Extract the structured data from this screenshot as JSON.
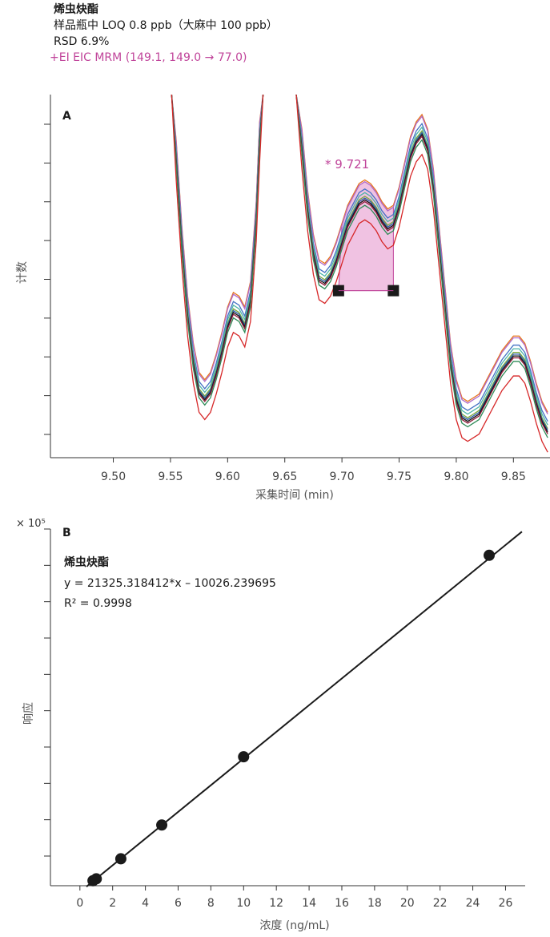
{
  "header": {
    "compound": "烯虫炔酯",
    "loq": "样品瓶中 LOQ 0.8 ppb（大麻中 100 ppb）",
    "rsd": "RSD 6.9%",
    "eic": "+EI EIC MRM (149.1, 149.0 → 77.0)"
  },
  "chart_data": [
    {
      "panel": "A",
      "type": "line",
      "xlabel": "采集时间 (min)",
      "ylabel": "计数",
      "xlim": [
        9.445,
        9.882
      ],
      "ylim": [
        0,
        10
      ],
      "xticks": [
        "9.50",
        "9.55",
        "9.60",
        "9.65",
        "9.70",
        "9.75",
        "9.80",
        "9.85"
      ],
      "y_tick_count": 9,
      "y_tick_labels_shown": false,
      "peak_label": "* 9.721",
      "integration": {
        "start": 9.697,
        "end": 9.745,
        "baseline": 4.6
      },
      "series_colors": [
        "#e8751a",
        "#b069c9",
        "#4472c4",
        "#4cb5a8",
        "#7aa83c",
        "#2a5aa8",
        "#111111",
        "#8e1c3a",
        "#2e8b57",
        "#d62728"
      ],
      "x": [
        9.551,
        9.555,
        9.56,
        9.565,
        9.57,
        9.575,
        9.58,
        9.585,
        9.59,
        9.595,
        9.6,
        9.605,
        9.61,
        9.615,
        9.62,
        9.625,
        9.628,
        9.631,
        9.66,
        9.665,
        9.67,
        9.675,
        9.68,
        9.685,
        9.69,
        9.695,
        9.7,
        9.705,
        9.71,
        9.715,
        9.72,
        9.725,
        9.73,
        9.735,
        9.74,
        9.745,
        9.75,
        9.755,
        9.76,
        9.765,
        9.77,
        9.775,
        9.78,
        9.785,
        9.79,
        9.795,
        9.8,
        9.805,
        9.81,
        9.815,
        9.82,
        9.825,
        9.83,
        9.835,
        9.84,
        9.845,
        9.85,
        9.855,
        9.86,
        9.865,
        9.87,
        9.875,
        9.88
      ],
      "reference_series": [
        10.0,
        8.2,
        5.8,
        3.9,
        2.6,
        1.8,
        1.6,
        1.8,
        2.3,
        2.9,
        3.6,
        4.0,
        3.9,
        3.6,
        4.3,
        6.5,
        8.7,
        10.0,
        10.0,
        8.5,
        6.8,
        5.6,
        4.9,
        4.8,
        5.0,
        5.4,
        5.9,
        6.4,
        6.7,
        7.0,
        7.1,
        7.0,
        6.8,
        6.5,
        6.3,
        6.4,
        6.9,
        7.6,
        8.3,
        8.7,
        8.9,
        8.5,
        7.4,
        5.8,
        4.2,
        2.6,
        1.6,
        1.1,
        1.0,
        1.1,
        1.2,
        1.5,
        1.8,
        2.1,
        2.4,
        2.6,
        2.8,
        2.8,
        2.6,
        2.1,
        1.5,
        1.0,
        0.7
      ],
      "series_level_offsets": [
        0.55,
        0.5,
        0.3,
        0.2,
        0.1,
        0.05,
        0.0,
        -0.05,
        -0.15,
        -0.55
      ]
    },
    {
      "panel": "B",
      "type": "scatter",
      "xlabel": "浓度 (ng/mL)",
      "ylabel": "响应",
      "y_multiplier": "× 10⁵",
      "xlim": [
        -1.8,
        27.2
      ],
      "ylim": [
        0,
        5.7
      ],
      "xticks": [
        0,
        2,
        4,
        6,
        8,
        10,
        12,
        14,
        16,
        18,
        20,
        22,
        24,
        26
      ],
      "y_tick_count": 10,
      "y_tick_labels_shown": false,
      "compound": "烯虫炔酯",
      "equation": "y = 21325.318412*x – 10026.239695",
      "r2": "R² = 0.9998",
      "points": [
        {
          "x": 0.8,
          "y": 0.08
        },
        {
          "x": 1.0,
          "y": 0.11
        },
        {
          "x": 2.5,
          "y": 0.43
        },
        {
          "x": 5.0,
          "y": 0.97
        },
        {
          "x": 10.0,
          "y": 2.06
        },
        {
          "x": 25.0,
          "y": 5.28
        }
      ],
      "fit": {
        "slope": 0.21325318412,
        "intercept": -0.10026239695
      }
    }
  ]
}
